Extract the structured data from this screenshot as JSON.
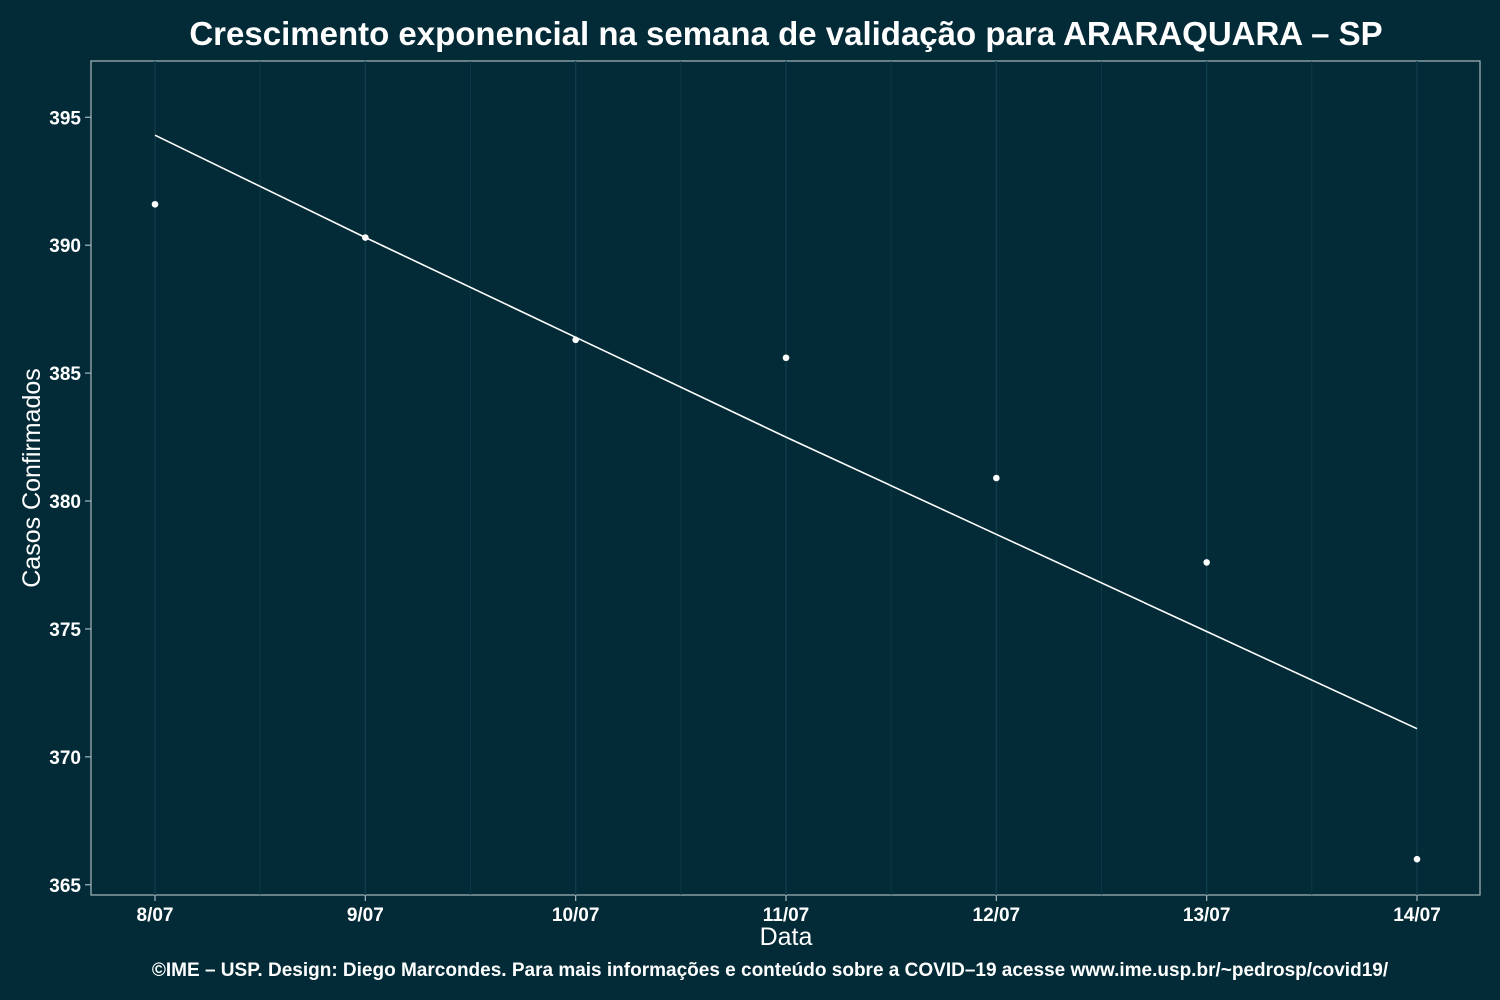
{
  "chart_data": {
    "type": "scatter",
    "title": "Crescimento exponencial na semana de validação para ARARAQUARA – SP",
    "xlabel": "Data",
    "ylabel": "Casos Confirmados",
    "categories": [
      "8/07",
      "9/07",
      "10/07",
      "11/07",
      "12/07",
      "13/07",
      "14/07"
    ],
    "yticks": [
      365,
      370,
      375,
      380,
      385,
      390,
      395
    ],
    "ylim": [
      364.6,
      397.2
    ],
    "grid": true,
    "legend": "none",
    "series": [
      {
        "kind": "points",
        "values": [
          391.6,
          390.3,
          386.3,
          385.6,
          380.9,
          377.6,
          366.0
        ]
      },
      {
        "kind": "fit-line",
        "values": [
          394.3,
          390.3,
          386.4,
          382.5,
          378.7,
          374.9,
          371.1
        ]
      }
    ],
    "caption": "©IME – USP. Design: Diego Marcondes. Para mais informações e conteúdo sobre a COVID–19 acesse www.ime.usp.br/~pedrosp/covid19/"
  },
  "colors": {
    "background": "#022b37",
    "panel": "#022b37",
    "grid": "#0f3d49",
    "axis": "#a8b8bd",
    "marks": "#ffffff"
  }
}
